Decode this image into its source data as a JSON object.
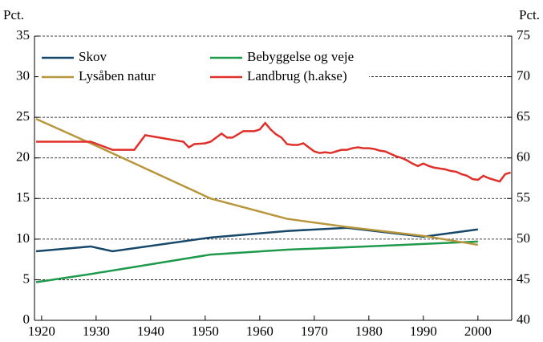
{
  "chart_data": {
    "type": "line",
    "y_label": "Pct.",
    "y2_label": "Pct.",
    "xlim": [
      1918.7,
      2006.2
    ],
    "xticks": [
      1920,
      1930,
      1940,
      1950,
      1960,
      1970,
      1980,
      1990,
      2000
    ],
    "ylim": [
      0,
      35
    ],
    "yticks": [
      0,
      5,
      10,
      15,
      20,
      25,
      30,
      35
    ],
    "y2lim": [
      40,
      75
    ],
    "y2ticks": [
      40,
      45,
      50,
      55,
      60,
      65,
      70,
      75
    ],
    "grid": true,
    "series": [
      {
        "name": "Skov",
        "color": "#17486a",
        "x": [
          1919,
          1929,
          1933,
          1951,
          1965,
          1976,
          1990,
          2000
        ],
        "values": [
          8.5,
          9.1,
          8.5,
          10.2,
          11.0,
          11.4,
          10.3,
          11.2
        ]
      },
      {
        "name": "Bebyggelse og veje",
        "color": "#1f9a4c",
        "x": [
          1919,
          1929,
          1951,
          1965,
          1976,
          1990,
          2000
        ],
        "values": [
          4.7,
          5.7,
          8.1,
          8.7,
          9.0,
          9.4,
          9.7
        ]
      },
      {
        "name": "Lysåben natur",
        "color": "#b8963c",
        "x": [
          1919,
          1929,
          1951,
          1965,
          1976,
          1990,
          2000
        ],
        "values": [
          24.8,
          21.8,
          15.0,
          12.5,
          11.5,
          10.4,
          9.3
        ]
      },
      {
        "name": "Landbrug (h.akse)",
        "color": "#e0302a",
        "axis": "y2",
        "x": [
          1919,
          1929,
          1933,
          1937,
          1939,
          1946,
          1947,
          1948,
          1950,
          1951,
          1953,
          1954,
          1955,
          1957,
          1959,
          1960,
          1961,
          1962,
          1963,
          1964,
          1965,
          1966,
          1967,
          1968,
          1969,
          1970,
          1971,
          1972,
          1973,
          1974,
          1975,
          1976,
          1977,
          1978,
          1979,
          1980,
          1981,
          1982,
          1983,
          1984,
          1985,
          1986,
          1987,
          1988,
          1989,
          1990,
          1991,
          1992,
          1993,
          1994,
          1995,
          1996,
          1997,
          1998,
          1999,
          2000,
          2001,
          2002,
          2003,
          2004,
          2005,
          2006
        ],
        "values": [
          62,
          62,
          61,
          61,
          62.8,
          62,
          61.3,
          61.7,
          61.8,
          62,
          63,
          62.5,
          62.5,
          63.3,
          63.3,
          63.5,
          64.3,
          63.5,
          62.9,
          62.5,
          61.7,
          61.6,
          61.6,
          61.8,
          61.3,
          60.8,
          60.6,
          60.7,
          60.6,
          60.8,
          61,
          61,
          61.2,
          61.3,
          61.2,
          61.2,
          61.1,
          60.9,
          60.8,
          60.5,
          60.2,
          60,
          59.7,
          59.3,
          59,
          59.3,
          59,
          58.8,
          58.7,
          58.6,
          58.4,
          58.3,
          58,
          57.8,
          57.4,
          57.3,
          57.8,
          57.5,
          57.3,
          57.1,
          58.0,
          58.2
        ]
      }
    ]
  }
}
